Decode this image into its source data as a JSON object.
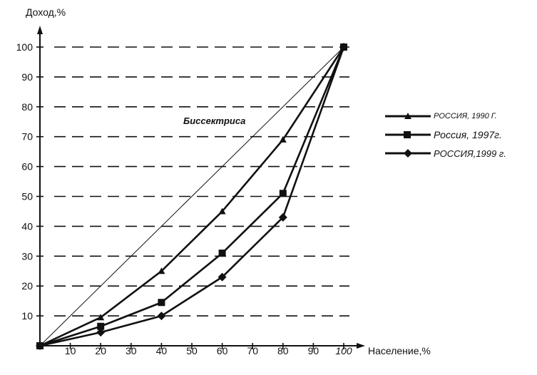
{
  "chart_data": {
    "type": "line",
    "xlabel": "Население,%",
    "ylabel": "Доход,%",
    "xlim": [
      0,
      100
    ],
    "ylim": [
      0,
      100
    ],
    "x_ticks": [
      "10",
      "20",
      "30",
      "40",
      "50",
      "60",
      "70",
      "80",
      "90",
      "100"
    ],
    "y_ticks": [
      "10",
      "20",
      "30",
      "40",
      "50",
      "60",
      "70",
      "80",
      "90",
      "100"
    ],
    "grid": "horizontal dashed",
    "legend_position": "right",
    "annotation": "Биссектриса",
    "diagonal": {
      "x": [
        0,
        100
      ],
      "y": [
        0,
        100
      ]
    },
    "series": [
      {
        "name": "РОССИЯ,  1990 Г.",
        "marker": "triangle",
        "x": [
          0,
          20,
          40,
          60,
          80,
          100
        ],
        "y": [
          0,
          9.5,
          25,
          45,
          69,
          100
        ]
      },
      {
        "name": "Россия, 1997г.",
        "marker": "square",
        "x": [
          0,
          20,
          40,
          60,
          80,
          100
        ],
        "y": [
          0,
          6.5,
          14.5,
          31,
          51,
          100
        ]
      },
      {
        "name": "РОССИЯ,1999 г.",
        "marker": "diamond",
        "x": [
          0,
          20,
          40,
          60,
          80,
          100
        ],
        "y": [
          0,
          4.5,
          10,
          23,
          43,
          100
        ]
      }
    ]
  }
}
